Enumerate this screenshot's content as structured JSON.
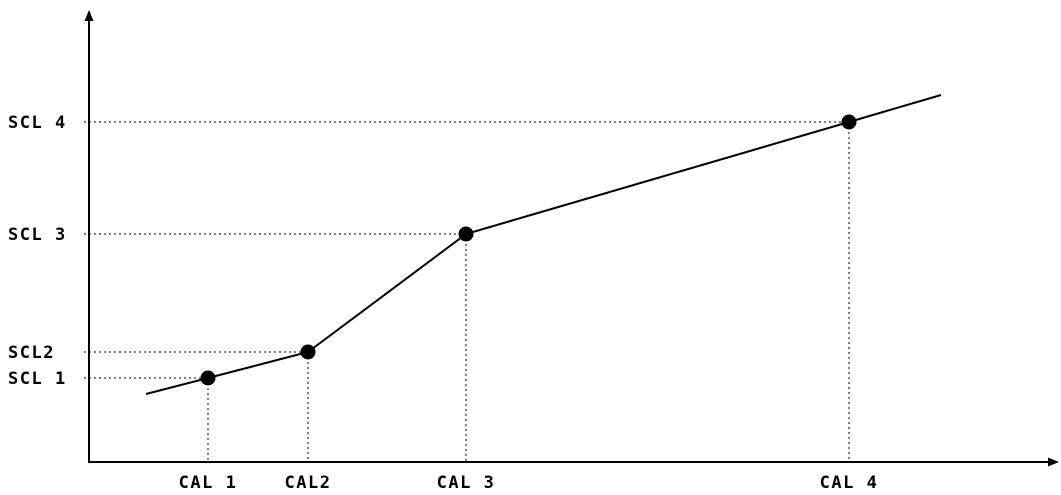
{
  "diagram": {
    "y_labels": [
      "SCL 1",
      "SCL2",
      "SCL 3",
      "SCL 4"
    ],
    "x_labels": [
      "CAL 1",
      "CAL2",
      "CAL 3",
      "CAL 4"
    ],
    "colors": {
      "line": "#000000",
      "background": "#ffffff"
    }
  }
}
